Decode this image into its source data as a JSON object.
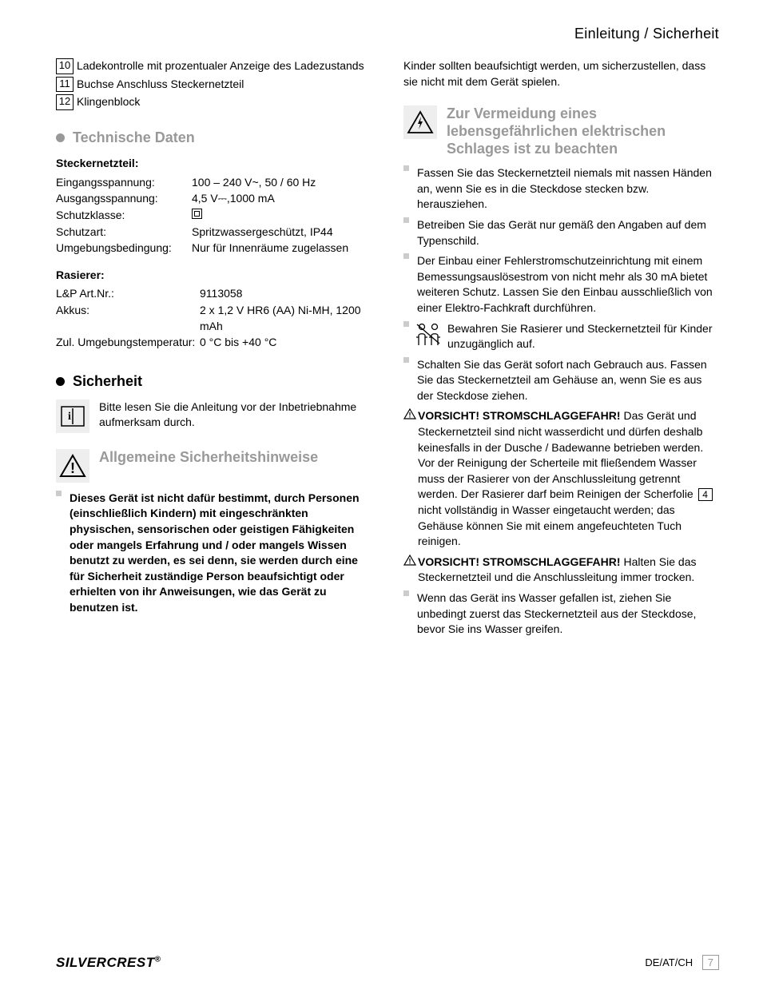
{
  "header": "Einleitung / Sicherheit",
  "parts": [
    {
      "n": "10",
      "txt": "Ladekontrolle mit prozentualer Anzeige des Ladezustands"
    },
    {
      "n": "11",
      "txt": "Buchse Anschluss Steckernetzteil"
    },
    {
      "n": "12",
      "txt": "Klingenblock"
    }
  ],
  "tech": {
    "title": "Technische Daten",
    "psu_head": "Steckernetzteil:",
    "rows1": [
      {
        "l": "Eingangsspannung:",
        "v": "100 – 240 V~, 50 / 60 Hz"
      },
      {
        "l": "Ausgangsspannung:",
        "v": "4,5 V⎓,1000 mA"
      },
      {
        "l": "Schutzklasse:",
        "v": "__CLASS2__"
      },
      {
        "l": "Schutzart:",
        "v": "Spritzwassergeschützt, IP44"
      },
      {
        "l": "Umgebungsbedingung:",
        "v": "Nur für Innenräume zugelassen"
      }
    ],
    "razor_head": "Rasierer:",
    "rows2": [
      {
        "l": "L&P Art.Nr.:",
        "v": "9113058"
      },
      {
        "l": "Akkus:",
        "v": "2 x 1,2 V HR6 (AA) Ni-MH, 1200 mAh"
      },
      {
        "l": "Zul. Umgebungstemperatur:",
        "v": "0 °C bis +40 °C"
      }
    ]
  },
  "safety": {
    "title": "Sicherheit",
    "read": "Bitte lesen Sie die Anleitung vor der Inbetriebnahme aufmerksam durch.",
    "gen_title": "Allgemeine Sicherheitshinweise",
    "b1": "Dieses Gerät ist nicht dafür bestimmt, durch Personen (einschließlich Kindern) mit eingeschränkten physischen, sensorischen oder geistigen Fähigkeiten oder mangels Erfahrung und / oder mangels Wissen benutzt zu werden, es sei denn, sie werden durch eine für Sicherheit zuständige Person beaufsichtigt oder erhielten von ihr Anweisungen, wie das Gerät zu benutzen ist."
  },
  "right": {
    "p1": "Kinder sollten beaufsichtigt werden, um sicherzustellen, dass sie nicht mit dem Gerät spielen.",
    "shock_title": "Zur Vermeidung eines lebensgefährlichen elektrischen Schlages ist zu beachten",
    "items": [
      "Fassen Sie das Steckernetzteil niemals mit nassen Händen an, wenn Sie es in die Steckdose stecken bzw. herausziehen.",
      "Betreiben Sie das Gerät nur gemäß den Angaben auf dem Typenschild.",
      "Der Einbau einer Fehlerstromschutzeinrichtung mit einem Bemessungsauslösestrom von nicht mehr als 30 mA bietet weiteren Schutz. Lassen Sie den Einbau ausschließlich von einer Elektro-Fachkraft durchführen."
    ],
    "child_keep": "Bewahren Sie Rasierer und Steckernetzteil für Kinder unzugänglich auf.",
    "after_use": "Schalten Sie das Gerät sofort nach Gebrauch aus. Fassen Sie das Steckernetzteil am Gehäuse an, wenn Sie es aus der Steckdose ziehen.",
    "vors1_head": "VORSICHT! STROMSCHLAGGEFAHR!",
    "vors1_pre": "Das Gerät und Steckernetzteil sind nicht wasserdicht und dürfen deshalb keinesfalls in der Dusche / Badewanne betrieben werden. Vor der Reinigung der Scherteile mit fließendem Wasser muss der Rasierer von der Anschlussleitung getrennt werden. Der Rasierer darf beim Reinigen der Scherfolie ",
    "vors1_num": "4",
    "vors1_post": " nicht vollständig in Wasser eingetaucht werden; das Gehäuse können Sie mit einem angefeuchteten Tuch reinigen.",
    "vors2_head": "VORSICHT! STROMSCHLAGGEFAHR!",
    "vors2": "Halten Sie das Steckernetzteil und die Anschlussleitung immer trocken.",
    "water": "Wenn das Gerät ins Wasser gefallen ist, ziehen Sie unbedingt zuerst das Steckernetzteil aus der Steckdose, bevor Sie ins Wasser greifen."
  },
  "footer": {
    "brand": "SILVERCREST",
    "loc": "DE/AT/CH",
    "page": "7"
  }
}
